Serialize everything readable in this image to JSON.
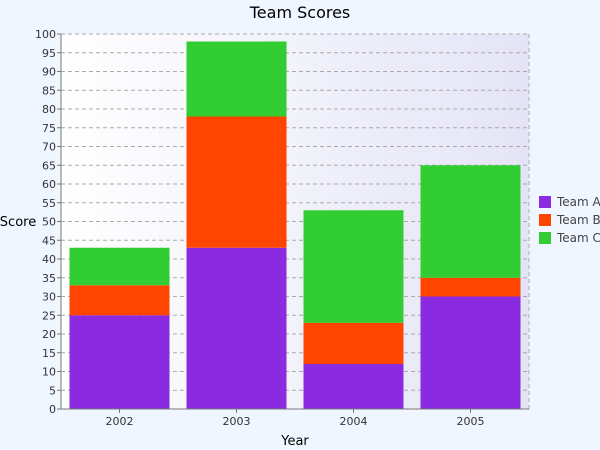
{
  "chart_data": {
    "type": "bar",
    "stacked": true,
    "title": "Team Scores",
    "xlabel": "Year",
    "ylabel": "Score",
    "categories": [
      "2002",
      "2003",
      "2004",
      "2005"
    ],
    "series": [
      {
        "name": "Team A",
        "color": "#8a2be2",
        "values": [
          25,
          43,
          12,
          30
        ]
      },
      {
        "name": "Team B",
        "color": "#ff4500",
        "values": [
          8,
          35,
          11,
          5
        ]
      },
      {
        "name": "Team C",
        "color": "#32cd32",
        "values": [
          10,
          20,
          30,
          30
        ]
      }
    ],
    "ylim": [
      0,
      100
    ],
    "ytick_step": 5,
    "grid": true,
    "legend_position": "right"
  }
}
